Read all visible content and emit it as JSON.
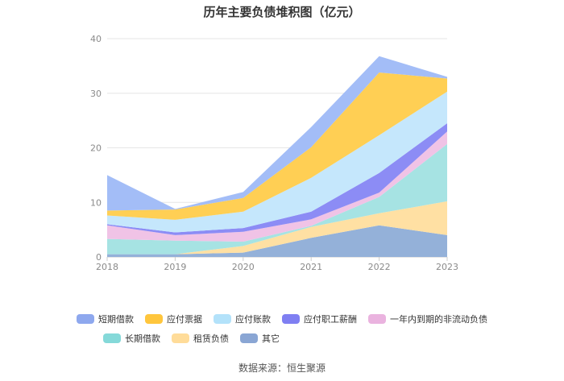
{
  "chart_data": {
    "type": "area",
    "stacked": true,
    "title": "历年主要负债堆积图（亿元）",
    "categories": [
      "2018",
      "2019",
      "2020",
      "2021",
      "2022",
      "2023"
    ],
    "ylim": [
      0,
      40
    ],
    "yticks": [
      0,
      10,
      20,
      30,
      40
    ],
    "grid": true,
    "legend_position": "bottom",
    "series": [
      {
        "name": "其它",
        "color": "#94b1d9",
        "values": [
          0.5,
          0.5,
          0.8,
          3.5,
          5.8,
          4.0
        ]
      },
      {
        "name": "租赁负债",
        "color": "#ffe0a3",
        "values": [
          0.0,
          0.0,
          1.2,
          2.0,
          2.2,
          6.2
        ]
      },
      {
        "name": "长期借款",
        "color": "#a6e3e3",
        "values": [
          2.8,
          2.5,
          0.8,
          0.2,
          3.0,
          10.5
        ]
      },
      {
        "name": "一年内到期的非流动负债",
        "color": "#f0c3e6",
        "values": [
          2.5,
          1.0,
          1.8,
          1.2,
          0.8,
          2.3
        ]
      },
      {
        "name": "应付职工薪酬",
        "color": "#8c8cf5",
        "values": [
          0.2,
          0.5,
          0.7,
          1.4,
          3.6,
          1.5
        ]
      },
      {
        "name": "应付账款",
        "color": "#c5e7fc",
        "values": [
          1.6,
          2.3,
          3.0,
          6.2,
          6.9,
          5.8
        ]
      },
      {
        "name": "应付票据",
        "color": "#ffcf54",
        "values": [
          0.9,
          1.9,
          2.5,
          5.6,
          11.5,
          2.4
        ]
      },
      {
        "name": "短期借款",
        "color": "#a3bdf7",
        "values": [
          6.5,
          0.1,
          1.1,
          3.7,
          3.0,
          0.3
        ]
      }
    ]
  },
  "legend": {
    "row1": [
      {
        "name": "短期借款",
        "color": "#8ea8ee"
      },
      {
        "name": "应付票据",
        "color": "#ffc63d"
      },
      {
        "name": "应付账款",
        "color": "#b3e2fa"
      },
      {
        "name": "应付职工薪酬",
        "color": "#7f7ff2"
      },
      {
        "name": "一年内到期的非流动负债",
        "color": "#eab3df"
      }
    ],
    "row2": [
      {
        "name": "长期借款",
        "color": "#85d9d9"
      },
      {
        "name": "租赁负债",
        "color": "#ffdc99"
      },
      {
        "name": "其它",
        "color": "#8aa6d4"
      }
    ]
  },
  "source": "数据来源：恒生聚源"
}
